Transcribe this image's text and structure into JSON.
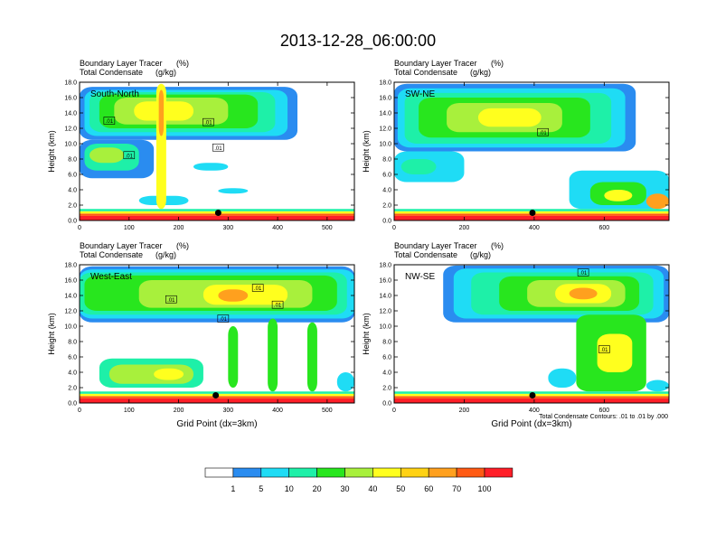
{
  "page": {
    "title": "2013-12-28_06:00:00",
    "footnote": "Total Condensate Contours: .01 to .01 by .000"
  },
  "colors": {
    "frame": "#000000",
    "bins": [
      "#ffffff",
      "#2a8cf0",
      "#1fdcf5",
      "#1ef0a8",
      "#28e61e",
      "#a8f03c",
      "#ffff1e",
      "#ffd214",
      "#ffa01e",
      "#ff5a14",
      "#ff1e28"
    ]
  },
  "legend": {
    "labels": [
      "1",
      "5",
      "10",
      "20",
      "30",
      "40",
      "50",
      "60",
      "70",
      "100"
    ]
  },
  "chart_data": [
    {
      "type": "heatmap",
      "panel_label": "South-North",
      "title": "Boundary Layer Tracer",
      "title_unit": "(%)",
      "subtitle": "Total Condensate",
      "subtitle_unit": "(g/kg)",
      "ylabel": "Height (km)",
      "xlabel": "",
      "xlim": [
        0,
        555
      ],
      "ylim": [
        0,
        18
      ],
      "xticks": [
        0,
        100,
        200,
        300,
        400,
        500
      ],
      "yticks": [
        "0.0",
        "2.0",
        "4.0",
        "6.0",
        "8.0",
        "10.0",
        "12.0",
        "14.0",
        "16.0",
        "18.0"
      ],
      "marker": {
        "x": 280,
        "y": 1.0
      },
      "contour_labels": [
        {
          "text": ".01",
          "x": 60,
          "y": 13.0
        },
        {
          "text": ".01",
          "x": 100,
          "y": 8.5
        },
        {
          "text": ".01",
          "x": 260,
          "y": 12.8
        },
        {
          "text": ".01",
          "x": 280,
          "y": 9.5
        }
      ],
      "bands": [
        {
          "value": 100,
          "y0": 0,
          "y1": 0.6
        },
        {
          "value": 70,
          "y0": 0.6,
          "y1": 0.9
        },
        {
          "value": 40,
          "y0": 0.9,
          "y1": 1.2
        },
        {
          "value": 10,
          "y0": 1.2,
          "y1": 1.5
        }
      ],
      "cloud": [
        {
          "value": 1,
          "x0": 0,
          "x1": 440,
          "y0": 10.5,
          "y1": 17.4
        },
        {
          "value": 5,
          "x0": 10,
          "x1": 420,
          "y0": 11.0,
          "y1": 17.0
        },
        {
          "value": 10,
          "x0": 20,
          "x1": 395,
          "y0": 11.5,
          "y1": 16.7
        },
        {
          "value": 20,
          "x0": 40,
          "x1": 360,
          "y0": 12.0,
          "y1": 16.4
        },
        {
          "value": 30,
          "x0": 70,
          "x1": 300,
          "y0": 12.5,
          "y1": 16.0
        },
        {
          "value": 40,
          "x0": 110,
          "x1": 230,
          "y0": 13.0,
          "y1": 15.5
        },
        {
          "value": 1,
          "x0": 0,
          "x1": 150,
          "y0": 5.5,
          "y1": 10.5
        },
        {
          "value": 10,
          "x0": 10,
          "x1": 120,
          "y0": 6.5,
          "y1": 10.0
        },
        {
          "value": 30,
          "x0": 20,
          "x1": 90,
          "y0": 7.5,
          "y1": 9.5
        },
        {
          "value": 5,
          "x0": 230,
          "x1": 300,
          "y0": 6.5,
          "y1": 7.5
        },
        {
          "value": 5,
          "x0": 280,
          "x1": 340,
          "y0": 3.5,
          "y1": 4.2
        },
        {
          "value": 5,
          "x0": 120,
          "x1": 220,
          "y0": 2.0,
          "y1": 3.2
        },
        {
          "value": 40,
          "x0": 155,
          "x1": 175,
          "y0": 1.5,
          "y1": 17.8
        },
        {
          "value": 60,
          "x0": 160,
          "x1": 170,
          "y0": 11.0,
          "y1": 17.0
        }
      ]
    },
    {
      "type": "heatmap",
      "panel_label": "SW-NE",
      "title": "Boundary Layer Tracer",
      "title_unit": "(%)",
      "subtitle": "Total Condensate",
      "subtitle_unit": "(g/kg)",
      "ylabel": "Height (km)",
      "xlabel": "",
      "xlim": [
        0,
        785
      ],
      "ylim": [
        0,
        18
      ],
      "xticks": [
        0,
        200,
        400,
        600
      ],
      "yticks": [
        "0.0",
        "2.0",
        "4.0",
        "6.0",
        "8.0",
        "10.0",
        "12.0",
        "14.0",
        "16.0",
        "18.0"
      ],
      "marker": {
        "x": 395,
        "y": 1.0
      },
      "contour_labels": [
        {
          "text": ".01",
          "x": 425,
          "y": 11.5
        }
      ],
      "bands": [
        {
          "value": 100,
          "y0": 0,
          "y1": 0.6
        },
        {
          "value": 70,
          "y0": 0.6,
          "y1": 0.9
        },
        {
          "value": 40,
          "y0": 0.9,
          "y1": 1.2
        },
        {
          "value": 10,
          "y0": 1.2,
          "y1": 1.5
        }
      ],
      "cloud": [
        {
          "value": 1,
          "x0": 0,
          "x1": 690,
          "y0": 9.0,
          "y1": 17.8
        },
        {
          "value": 5,
          "x0": 10,
          "x1": 660,
          "y0": 9.5,
          "y1": 17.2
        },
        {
          "value": 10,
          "x0": 30,
          "x1": 620,
          "y0": 10.0,
          "y1": 16.6
        },
        {
          "value": 20,
          "x0": 70,
          "x1": 560,
          "y0": 10.8,
          "y1": 16.0
        },
        {
          "value": 30,
          "x0": 150,
          "x1": 480,
          "y0": 11.5,
          "y1": 15.3
        },
        {
          "value": 40,
          "x0": 240,
          "x1": 420,
          "y0": 12.2,
          "y1": 14.6
        },
        {
          "value": 5,
          "x0": 0,
          "x1": 200,
          "y0": 5.0,
          "y1": 9.0
        },
        {
          "value": 10,
          "x0": 20,
          "x1": 120,
          "y0": 6.0,
          "y1": 8.0
        },
        {
          "value": 5,
          "x0": 500,
          "x1": 785,
          "y0": 1.5,
          "y1": 6.5
        },
        {
          "value": 20,
          "x0": 560,
          "x1": 720,
          "y0": 2.0,
          "y1": 5.0
        },
        {
          "value": 40,
          "x0": 600,
          "x1": 680,
          "y0": 2.5,
          "y1": 4.0
        },
        {
          "value": 60,
          "x0": 720,
          "x1": 785,
          "y0": 1.5,
          "y1": 3.5
        }
      ]
    },
    {
      "type": "heatmap",
      "panel_label": "West-East",
      "title": "Boundary Layer Tracer",
      "title_unit": "(%)",
      "subtitle": "Total Condensate",
      "subtitle_unit": "(g/kg)",
      "ylabel": "Height (km)",
      "xlabel": "Grid Point (dx=3km)",
      "xlim": [
        0,
        555
      ],
      "ylim": [
        0,
        18
      ],
      "xticks": [
        0,
        100,
        200,
        300,
        400,
        500
      ],
      "yticks": [
        "0.0",
        "2.0",
        "4.0",
        "6.0",
        "8.0",
        "10.0",
        "12.0",
        "14.0",
        "16.0",
        "18.0"
      ],
      "marker": {
        "x": 275,
        "y": 1.0
      },
      "contour_labels": [
        {
          "text": ".01",
          "x": 185,
          "y": 13.5
        },
        {
          "text": ".01",
          "x": 290,
          "y": 11.0
        },
        {
          "text": ".01",
          "x": 360,
          "y": 15.0
        },
        {
          "text": ".01",
          "x": 400,
          "y": 12.8
        }
      ],
      "bands": [
        {
          "value": 100,
          "y0": 0,
          "y1": 0.6
        },
        {
          "value": 70,
          "y0": 0.6,
          "y1": 0.9
        },
        {
          "value": 40,
          "y0": 0.9,
          "y1": 1.2
        },
        {
          "value": 10,
          "y0": 1.2,
          "y1": 1.5
        }
      ],
      "cloud": [
        {
          "value": 1,
          "x0": 0,
          "x1": 555,
          "y0": 10.5,
          "y1": 17.8
        },
        {
          "value": 5,
          "x0": 0,
          "x1": 555,
          "y0": 11.0,
          "y1": 17.4
        },
        {
          "value": 10,
          "x0": 0,
          "x1": 540,
          "y0": 11.5,
          "y1": 17.0
        },
        {
          "value": 20,
          "x0": 10,
          "x1": 520,
          "y0": 12.0,
          "y1": 16.6
        },
        {
          "value": 30,
          "x0": 120,
          "x1": 470,
          "y0": 12.4,
          "y1": 16.0
        },
        {
          "value": 40,
          "x0": 250,
          "x1": 420,
          "y0": 12.8,
          "y1": 15.4
        },
        {
          "value": 60,
          "x0": 280,
          "x1": 340,
          "y0": 13.2,
          "y1": 14.8
        },
        {
          "value": 10,
          "x0": 40,
          "x1": 250,
          "y0": 2.0,
          "y1": 5.8
        },
        {
          "value": 30,
          "x0": 60,
          "x1": 230,
          "y0": 2.5,
          "y1": 5.0
        },
        {
          "value": 40,
          "x0": 150,
          "x1": 210,
          "y0": 3.0,
          "y1": 4.5
        },
        {
          "value": 20,
          "x0": 300,
          "x1": 320,
          "y0": 2.0,
          "y1": 10.0
        },
        {
          "value": 20,
          "x0": 380,
          "x1": 400,
          "y0": 1.5,
          "y1": 11.0
        },
        {
          "value": 20,
          "x0": 460,
          "x1": 480,
          "y0": 1.5,
          "y1": 10.5
        },
        {
          "value": 5,
          "x0": 520,
          "x1": 555,
          "y0": 1.5,
          "y1": 4.0
        }
      ]
    },
    {
      "type": "heatmap",
      "panel_label": "NW-SE",
      "title": "Boundary Layer Tracer",
      "title_unit": "(%)",
      "subtitle": "Total Condensate",
      "subtitle_unit": "(g/kg)",
      "ylabel": "Height (km)",
      "xlabel": "Grid Point (dx=3km)",
      "xlim": [
        0,
        785
      ],
      "ylim": [
        0,
        18
      ],
      "xticks": [
        0,
        200,
        400,
        600
      ],
      "yticks": [
        "0.0",
        "2.0",
        "4.0",
        "6.0",
        "8.0",
        "10.0",
        "12.0",
        "14.0",
        "16.0",
        "18.0"
      ],
      "marker": {
        "x": 395,
        "y": 1.0
      },
      "contour_labels": [
        {
          "text": ".01",
          "x": 540,
          "y": 17.0
        },
        {
          "text": ".01",
          "x": 600,
          "y": 7.0
        }
      ],
      "bands": [
        {
          "value": 100,
          "y0": 0,
          "y1": 0.6
        },
        {
          "value": 70,
          "y0": 0.6,
          "y1": 0.9
        },
        {
          "value": 40,
          "y0": 0.9,
          "y1": 1.2
        },
        {
          "value": 10,
          "y0": 1.2,
          "y1": 1.5
        }
      ],
      "cloud": [
        {
          "value": 1,
          "x0": 140,
          "x1": 785,
          "y0": 10.5,
          "y1": 17.9
        },
        {
          "value": 5,
          "x0": 170,
          "x1": 770,
          "y0": 11.0,
          "y1": 17.5
        },
        {
          "value": 10,
          "x0": 220,
          "x1": 740,
          "y0": 11.5,
          "y1": 17.0
        },
        {
          "value": 20,
          "x0": 300,
          "x1": 700,
          "y0": 12.0,
          "y1": 16.5
        },
        {
          "value": 30,
          "x0": 380,
          "x1": 660,
          "y0": 12.5,
          "y1": 16.0
        },
        {
          "value": 40,
          "x0": 460,
          "x1": 620,
          "y0": 13.0,
          "y1": 15.5
        },
        {
          "value": 60,
          "x0": 500,
          "x1": 580,
          "y0": 13.5,
          "y1": 15.0
        },
        {
          "value": 20,
          "x0": 520,
          "x1": 720,
          "y0": 1.5,
          "y1": 11.5
        },
        {
          "value": 40,
          "x0": 580,
          "x1": 680,
          "y0": 4.0,
          "y1": 9.0
        },
        {
          "value": 5,
          "x0": 440,
          "x1": 520,
          "y0": 2.0,
          "y1": 4.5
        },
        {
          "value": 5,
          "x0": 720,
          "x1": 785,
          "y0": 1.5,
          "y1": 3.0
        }
      ]
    }
  ]
}
